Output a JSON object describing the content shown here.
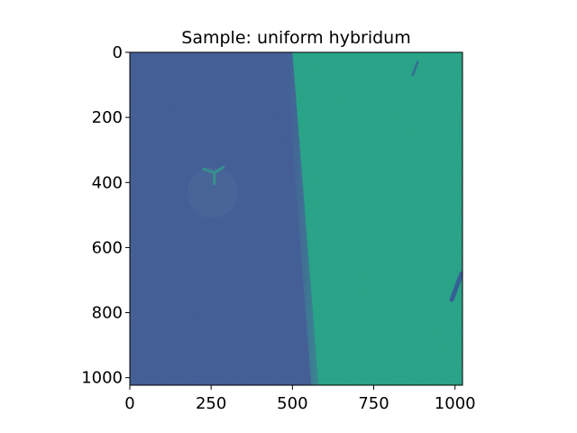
{
  "chart_data": {
    "type": "heatmap",
    "title": "Sample: uniform hybridum",
    "xlabel": "",
    "ylabel": "",
    "xlim": [
      0,
      1023
    ],
    "ylim": [
      1023,
      0
    ],
    "x_ticks": [
      {
        "value": 0,
        "label": "0"
      },
      {
        "value": 250,
        "label": "250"
      },
      {
        "value": 500,
        "label": "500"
      },
      {
        "value": 750,
        "label": "750"
      },
      {
        "value": 1000,
        "label": "1000"
      }
    ],
    "y_ticks": [
      {
        "value": 0,
        "label": "0"
      },
      {
        "value": 200,
        "label": "200"
      },
      {
        "value": 400,
        "label": "400"
      },
      {
        "value": 600,
        "label": "600"
      },
      {
        "value": 800,
        "label": "800"
      },
      {
        "value": 1000,
        "label": "1000"
      }
    ],
    "grid": false,
    "colormap": "viridis",
    "regions": [
      {
        "name": "dark-region",
        "color": "#3e5a94",
        "boundary_x_at_top": 500,
        "boundary_x_at_bottom": 580
      },
      {
        "name": "bright-region",
        "color": "#22a285"
      }
    ],
    "features": [
      {
        "name": "tri-arm-defect",
        "x": 260,
        "y": 370,
        "color": "#2f8f8a"
      },
      {
        "name": "streak-top-right",
        "x1": 885,
        "y1": 30,
        "x2": 870,
        "y2": 70,
        "color": "#2a6f8e"
      },
      {
        "name": "streak-right-edge",
        "x1": 1020,
        "y1": 680,
        "x2": 990,
        "y2": 760,
        "color": "#2f5b92"
      }
    ]
  }
}
